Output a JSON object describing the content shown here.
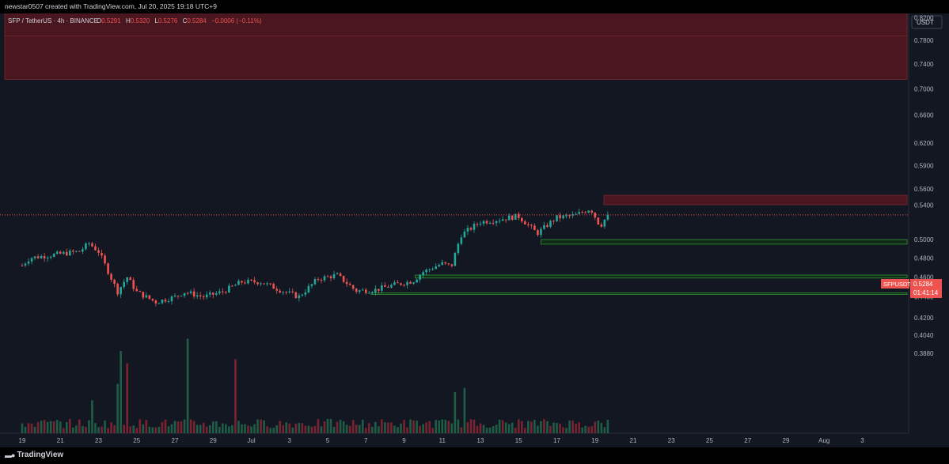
{
  "header": {
    "creator_line": "newstar0507 created with TradingView.com, Jul 20, 2025 19:18 UTC+9"
  },
  "legend": {
    "symbol": "SFP / TetherUS · 4h · BINANCE",
    "o_label": "O",
    "o": "0.5291",
    "h_label": "H",
    "h": "0.5320",
    "l_label": "L",
    "l": "0.5276",
    "c_label": "C",
    "c": "0.5284",
    "change": "−0.0006 (−0.11%)"
  },
  "price_axis": {
    "currency_label": "USDT",
    "ticks": [
      "0.9300",
      "0.9000",
      "0.8600",
      "0.8200",
      "0.7800",
      "0.7400",
      "0.7000",
      "0.6600",
      "0.6200",
      "0.5900",
      "0.5600",
      "0.5400",
      "0.5000",
      "0.4800",
      "0.4600",
      "0.4400",
      "0.4200",
      "0.4040",
      "0.3880"
    ],
    "last_price_tag": "0.5284",
    "countdown": "01:41:14",
    "symbol_tag": "SFPUSDT"
  },
  "time_axis": {
    "ticks": [
      "19",
      "21",
      "23",
      "25",
      "27",
      "29",
      "Jul",
      "3",
      "5",
      "7",
      "9",
      "11",
      "13",
      "15",
      "17",
      "19",
      "21",
      "23",
      "25",
      "27",
      "29",
      "Aug",
      "3"
    ]
  },
  "footer": {
    "brand": "TradingView"
  },
  "colors": {
    "bull": "#26a69a",
    "bear": "#ef5350",
    "resistance_zone": "#4a161f",
    "support_line": "#2e7d32",
    "background": "#131722"
  },
  "chart_data": {
    "type": "candlestick",
    "title": "SFP / TetherUS · 4h · BINANCE",
    "xlabel": "",
    "ylabel": "",
    "y_scale": "log",
    "ylim": [
      0.38,
      0.95
    ],
    "x_range": [
      "Jun 19",
      "Aug 4"
    ],
    "grid": false,
    "last_price": 0.5284,
    "zones": [
      {
        "type": "resistance",
        "from": 0.895,
        "to": 0.875
      },
      {
        "type": "resistance",
        "from": 0.865,
        "to": 0.715
      },
      {
        "type": "resistance",
        "from": 0.552,
        "to": 0.5405
      },
      {
        "type": "support",
        "from": 0.5,
        "to": 0.495
      },
      {
        "type": "support",
        "from": 0.462,
        "to": 0.459
      },
      {
        "type": "support",
        "from": 0.444,
        "to": 0.444
      }
    ],
    "anchors": [
      {
        "day": 0.0,
        "price": 0.472
      },
      {
        "day": 0.4,
        "price": 0.48
      },
      {
        "day": 1.5,
        "price": 0.483
      },
      {
        "day": 3.0,
        "price": 0.487
      },
      {
        "day": 3.5,
        "price": 0.496
      },
      {
        "day": 4.0,
        "price": 0.487
      },
      {
        "day": 5.0,
        "price": 0.445
      },
      {
        "day": 5.5,
        "price": 0.46
      },
      {
        "day": 6.0,
        "price": 0.445
      },
      {
        "day": 7.0,
        "price": 0.435
      },
      {
        "day": 8.0,
        "price": 0.44
      },
      {
        "day": 8.5,
        "price": 0.445
      },
      {
        "day": 9.5,
        "price": 0.44
      },
      {
        "day": 10.5,
        "price": 0.445
      },
      {
        "day": 11.5,
        "price": 0.455
      },
      {
        "day": 12.5,
        "price": 0.455
      },
      {
        "day": 13.5,
        "price": 0.447
      },
      {
        "day": 14.5,
        "price": 0.44
      },
      {
        "day": 15.5,
        "price": 0.458
      },
      {
        "day": 16.5,
        "price": 0.462
      },
      {
        "day": 17.5,
        "price": 0.446
      },
      {
        "day": 18.5,
        "price": 0.447
      },
      {
        "day": 19.5,
        "price": 0.452
      },
      {
        "day": 20.5,
        "price": 0.456
      },
      {
        "day": 21.0,
        "price": 0.465
      },
      {
        "day": 22.0,
        "price": 0.474
      },
      {
        "day": 22.5,
        "price": 0.471
      },
      {
        "day": 23.0,
        "price": 0.505
      },
      {
        "day": 24.0,
        "price": 0.52
      },
      {
        "day": 25.0,
        "price": 0.523
      },
      {
        "day": 26.0,
        "price": 0.527
      },
      {
        "day": 27.0,
        "price": 0.507
      },
      {
        "day": 28.0,
        "price": 0.525
      },
      {
        "day": 29.0,
        "price": 0.528
      },
      {
        "day": 29.8,
        "price": 0.536
      },
      {
        "day": 30.3,
        "price": 0.515
      },
      {
        "day": 30.7,
        "price": 0.5284
      }
    ],
    "volume_bars": 190,
    "spikes": [
      {
        "day": 5.2,
        "value": 1.0
      },
      {
        "day": 5.5,
        "value": 0.85
      },
      {
        "day": 5.0,
        "value": 0.6
      },
      {
        "day": 8.6,
        "value": 1.15
      },
      {
        "day": 8.7,
        "value": 0.8
      },
      {
        "day": 11.2,
        "value": 0.9
      },
      {
        "day": 22.7,
        "value": 0.5
      },
      {
        "day": 23.2,
        "value": 0.55
      },
      {
        "day": 3.6,
        "value": 0.4
      }
    ]
  }
}
